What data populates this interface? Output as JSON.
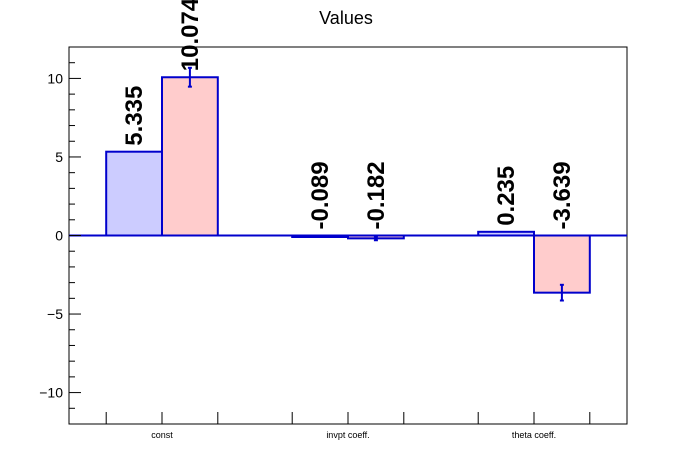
{
  "chart_data": {
    "type": "bar",
    "title": "Values",
    "xlabel": "",
    "ylabel": "",
    "categories": [
      "const",
      "invpt coeff.",
      "theta coeff."
    ],
    "ylim": [
      -12,
      12
    ],
    "yticks": [
      -10,
      -5,
      0,
      5,
      10
    ],
    "ytick_labels": [
      "−10",
      "−5",
      "0",
      "5",
      "10"
    ],
    "grid": false,
    "series": [
      {
        "values": [
          5.335,
          -0.089,
          0.235
        ],
        "labels": [
          "5.335",
          "-0.089",
          "0.235"
        ],
        "errors": [
          null,
          null,
          null
        ],
        "fill": "#ccccff",
        "stroke": "#0000cc"
      },
      {
        "values": [
          10.074,
          -0.182,
          -3.639
        ],
        "labels": [
          "10.074",
          "-0.182",
          "-3.639"
        ],
        "errors": [
          0.6,
          0.12,
          0.5
        ],
        "fill": "#ffcccc",
        "stroke": "#0000cc"
      }
    ]
  }
}
